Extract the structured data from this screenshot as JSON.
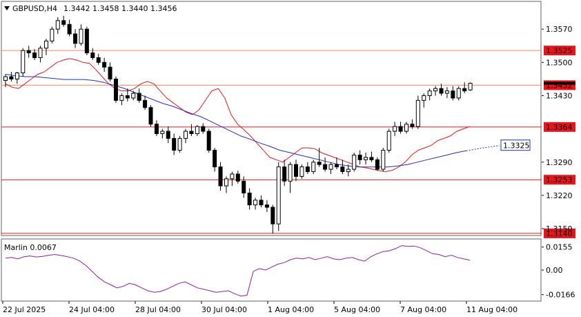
{
  "header": {
    "title": "GBPUSD,H4",
    "ohlc": "1.3442 1.3458 1.3440 1.3456",
    "menu_icon": "triangle-down-icon"
  },
  "colors": {
    "bull_fill": "#ffffff",
    "bear_fill": "#000000",
    "candle_stroke": "#000000",
    "ma_fast": "#e8161b",
    "ma_slow": "#1f2fc8",
    "level_line": "#e8161b",
    "level_label_bg": "#e8161b",
    "orange_line": "#f08a60",
    "marlin_line": "#8a1fa8",
    "grid": "#c8c8c8"
  },
  "chart_data": [
    {
      "type": "candlestick",
      "symbol": "GBPUSD",
      "timeframe": "H4",
      "ylim": [
        1.3137,
        1.3627
      ],
      "y_ticks": [
        "1.3570",
        "1.3500",
        "1.3430",
        "1.3290",
        "1.3220",
        "1.3150"
      ],
      "x_ticks": [
        "22 Jul 2025",
        "24 Jul 04:00",
        "28 Jul 04:00",
        "30 Jul 04:00",
        "1 Aug 04:00",
        "5 Aug 04:00",
        "7 Aug 04:00",
        "11 Aug 04:00"
      ],
      "grid": false,
      "candles": [
        [
          1.3462,
          1.3475,
          1.3448,
          1.347
        ],
        [
          1.347,
          1.348,
          1.346,
          1.3465
        ],
        [
          1.3465,
          1.348,
          1.3455,
          1.3478
        ],
        [
          1.3478,
          1.353,
          1.347,
          1.3525
        ],
        [
          1.3525,
          1.3535,
          1.351,
          1.352
        ],
        [
          1.352,
          1.3528,
          1.3505,
          1.351
        ],
        [
          1.351,
          1.3535,
          1.35,
          1.353
        ],
        [
          1.353,
          1.355,
          1.3515,
          1.3545
        ],
        [
          1.3545,
          1.3575,
          1.354,
          1.357
        ],
        [
          1.357,
          1.3595,
          1.356,
          1.3588
        ],
        [
          1.3588,
          1.3598,
          1.3575,
          1.358
        ],
        [
          1.358,
          1.359,
          1.3555,
          1.356
        ],
        [
          1.356,
          1.357,
          1.353,
          1.354
        ],
        [
          1.354,
          1.358,
          1.3535,
          1.357
        ],
        [
          1.357,
          1.3575,
          1.3515,
          1.352
        ],
        [
          1.352,
          1.353,
          1.3505,
          1.351
        ],
        [
          1.351,
          1.3518,
          1.3495,
          1.35
        ],
        [
          1.35,
          1.351,
          1.348,
          1.349
        ],
        [
          1.349,
          1.35,
          1.346,
          1.3465
        ],
        [
          1.3465,
          1.347,
          1.3415,
          1.342
        ],
        [
          1.342,
          1.3435,
          1.341,
          1.343
        ],
        [
          1.343,
          1.3445,
          1.3418,
          1.3425
        ],
        [
          1.3425,
          1.344,
          1.342,
          1.3435
        ],
        [
          1.3435,
          1.3445,
          1.3415,
          1.342
        ],
        [
          1.342,
          1.343,
          1.34,
          1.3405
        ],
        [
          1.3405,
          1.341,
          1.3365,
          1.337
        ],
        [
          1.337,
          1.3378,
          1.3345,
          1.335
        ],
        [
          1.335,
          1.336,
          1.334,
          1.3355
        ],
        [
          1.3355,
          1.3365,
          1.333,
          1.334
        ],
        [
          1.334,
          1.335,
          1.3305,
          1.3315
        ],
        [
          1.3315,
          1.3345,
          1.331,
          1.334
        ],
        [
          1.334,
          1.336,
          1.333,
          1.3355
        ],
        [
          1.3355,
          1.337,
          1.3345,
          1.335
        ],
        [
          1.335,
          1.3368,
          1.3345,
          1.3365
        ],
        [
          1.3365,
          1.3372,
          1.335,
          1.3355
        ],
        [
          1.3355,
          1.336,
          1.331,
          1.3315
        ],
        [
          1.3315,
          1.332,
          1.327,
          1.328
        ],
        [
          1.328,
          1.329,
          1.323,
          1.324
        ],
        [
          1.324,
          1.326,
          1.3225,
          1.3255
        ],
        [
          1.3255,
          1.327,
          1.324,
          1.3265
        ],
        [
          1.3265,
          1.3272,
          1.3245,
          1.325
        ],
        [
          1.325,
          1.326,
          1.3215,
          1.3225
        ],
        [
          1.3225,
          1.3235,
          1.319,
          1.32
        ],
        [
          1.32,
          1.3215,
          1.319,
          1.321
        ],
        [
          1.321,
          1.322,
          1.3195,
          1.32
        ],
        [
          1.32,
          1.321,
          1.3185,
          1.3195
        ],
        [
          1.3195,
          1.32,
          1.314,
          1.316
        ],
        [
          1.316,
          1.329,
          1.3145,
          1.328
        ],
        [
          1.328,
          1.3295,
          1.324,
          1.325
        ],
        [
          1.325,
          1.329,
          1.3225,
          1.3285
        ],
        [
          1.3285,
          1.3295,
          1.325,
          1.326
        ],
        [
          1.326,
          1.3285,
          1.3255,
          1.328
        ],
        [
          1.328,
          1.329,
          1.3265,
          1.327
        ],
        [
          1.327,
          1.3295,
          1.3265,
          1.329
        ],
        [
          1.329,
          1.332,
          1.328,
          1.3285
        ],
        [
          1.3285,
          1.33,
          1.327,
          1.3275
        ],
        [
          1.3275,
          1.329,
          1.3265,
          1.3285
        ],
        [
          1.3285,
          1.33,
          1.3275,
          1.328
        ],
        [
          1.328,
          1.3295,
          1.3265,
          1.327
        ],
        [
          1.327,
          1.3285,
          1.326,
          1.3275
        ],
        [
          1.3275,
          1.331,
          1.327,
          1.3305
        ],
        [
          1.3305,
          1.3315,
          1.3285,
          1.3295
        ],
        [
          1.3295,
          1.331,
          1.3285,
          1.33
        ],
        [
          1.33,
          1.3312,
          1.329,
          1.3295
        ],
        [
          1.3295,
          1.33,
          1.3272,
          1.3275
        ],
        [
          1.3275,
          1.332,
          1.327,
          1.3315
        ],
        [
          1.3315,
          1.336,
          1.331,
          1.3355
        ],
        [
          1.3355,
          1.3375,
          1.3345,
          1.3365
        ],
        [
          1.3365,
          1.3375,
          1.335,
          1.3355
        ],
        [
          1.3355,
          1.3375,
          1.335,
          1.337
        ],
        [
          1.337,
          1.338,
          1.336,
          1.3365
        ],
        [
          1.3365,
          1.343,
          1.336,
          1.342
        ],
        [
          1.342,
          1.3435,
          1.3405,
          1.343
        ],
        [
          1.343,
          1.3445,
          1.342,
          1.344
        ],
        [
          1.344,
          1.345,
          1.343,
          1.3445
        ],
        [
          1.3445,
          1.3455,
          1.343,
          1.3435
        ],
        [
          1.3435,
          1.3448,
          1.3425,
          1.344
        ],
        [
          1.344,
          1.345,
          1.342,
          1.3425
        ],
        [
          1.3425,
          1.345,
          1.342,
          1.3445
        ],
        [
          1.3445,
          1.3458,
          1.3435,
          1.344
        ],
        [
          1.3442,
          1.3458,
          1.344,
          1.3456
        ]
      ],
      "ma_fast": [
        1.3455,
        1.3448,
        1.3445,
        1.3455,
        1.3465,
        1.3475,
        1.348,
        1.349,
        1.35,
        1.3505,
        1.3508,
        1.3505,
        1.35,
        1.3498,
        1.3485,
        1.347,
        1.3455,
        1.3445,
        1.344,
        1.344,
        1.3445,
        1.3455,
        1.346,
        1.3455,
        1.344,
        1.3425,
        1.3415,
        1.3405,
        1.3395,
        1.339,
        1.34,
        1.342,
        1.344,
        1.3445,
        1.3425,
        1.339,
        1.337,
        1.3358,
        1.3345,
        1.333,
        1.3315,
        1.33,
        1.3295,
        1.329,
        1.33,
        1.331,
        1.332,
        1.332,
        1.3318,
        1.331,
        1.3305,
        1.33,
        1.3295,
        1.329,
        1.3285,
        1.328,
        1.3278,
        1.3275,
        1.3272,
        1.327,
        1.3273,
        1.328,
        1.329,
        1.3305,
        1.3315,
        1.332,
        1.3325,
        1.3335,
        1.334,
        1.3345,
        1.3355,
        1.336,
        1.3365
      ],
      "ma_slow": [
        1.3475,
        1.3472,
        1.347,
        1.347,
        1.3468,
        1.3466,
        1.3464,
        1.3464,
        1.3464,
        1.3462,
        1.3458,
        1.3452,
        1.3446,
        1.3438,
        1.343,
        1.3422,
        1.3414,
        1.3408,
        1.34,
        1.3392,
        1.3385,
        1.3375,
        1.3365,
        1.3355,
        1.3345,
        1.3338,
        1.333,
        1.3323,
        1.3315,
        1.331,
        1.3305,
        1.33,
        1.3295,
        1.329,
        1.3285,
        1.3282,
        1.328,
        1.328,
        1.328,
        1.328,
        1.3282,
        1.3285,
        1.329,
        1.3295,
        1.33,
        1.3305,
        1.331,
        1.3314
      ],
      "ma_slow_extension": [
        1.3314,
        1.332,
        1.3325
      ],
      "horizontal_levels": [
        {
          "price": 1.3525,
          "label": "1.3525",
          "style": "orange"
        },
        {
          "price": 1.3452,
          "label": "1.3452",
          "style": "orange"
        },
        {
          "price": 1.3364,
          "label": "1.3364",
          "style": "red"
        },
        {
          "price": 1.3253,
          "label": "1.3253",
          "style": "red"
        },
        {
          "price": 1.314,
          "label": "1.3140",
          "style": "red"
        }
      ],
      "ma_label": "1.3325",
      "current_price": 1.3456
    },
    {
      "type": "line",
      "title": "Marlin 0.0067",
      "ylim": [
        -0.0205,
        0.0205
      ],
      "y_ticks": [
        "0.0155",
        "0.00",
        "-0.0166"
      ],
      "values": [
        0.008,
        0.0085,
        0.0075,
        0.009,
        0.0095,
        0.0088,
        0.0092,
        0.01,
        0.0105,
        0.0098,
        0.009,
        0.008,
        0.006,
        0.003,
        -0.001,
        -0.005,
        -0.008,
        -0.01,
        -0.012,
        -0.011,
        -0.009,
        -0.01,
        -0.012,
        -0.014,
        -0.015,
        -0.0145,
        -0.013,
        -0.011,
        -0.009,
        -0.008,
        -0.01,
        -0.012,
        -0.013,
        -0.014,
        -0.015,
        -0.0145,
        -0.014,
        -0.016,
        -0.0175,
        -0.017,
        -0.001,
        0.001,
        0.0,
        0.002,
        0.004,
        0.005,
        0.007,
        0.008,
        0.0075,
        0.0085,
        0.007,
        0.008,
        0.009,
        0.0075,
        0.007,
        0.008,
        0.0085,
        0.007,
        0.006,
        0.009,
        0.011,
        0.0125,
        0.013,
        0.0145,
        0.0165,
        0.016,
        0.0162,
        0.015,
        0.013,
        0.011,
        0.0105,
        0.009,
        0.01,
        0.0085,
        0.0075,
        0.0067
      ]
    }
  ]
}
